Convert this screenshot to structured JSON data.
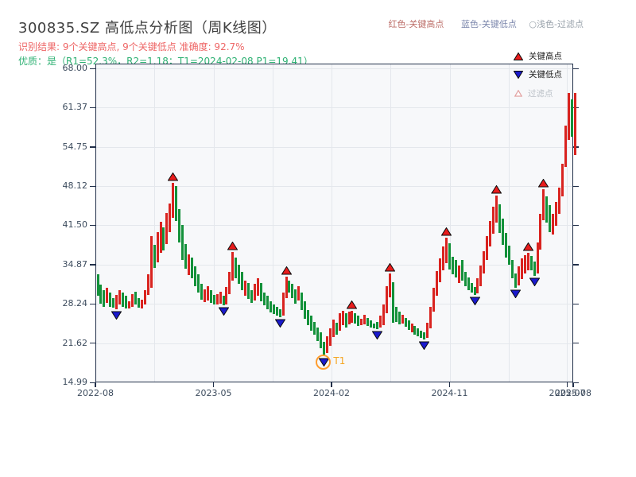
{
  "title": "300835.SZ 高低点分析图（周K线图）",
  "header_legend": {
    "red_label": "红色-关键高点",
    "blue_label": "蓝色-关键低点",
    "gray_label": "○浅色-过滤点"
  },
  "result_line": "识别结果: 9个关键高点, 9个关键低点  准确度: 92.7%",
  "quality_line": "优质：是（R1=52.3%，R2=1.18；T1=2024-02-08 P1=19.41）",
  "plot_legend": {
    "key_high": "关键高点",
    "key_low": "关键低点",
    "filtered": "过滤点"
  },
  "colors": {
    "candle_up": "#d9231f",
    "candle_down": "#13913a",
    "marker_high_fill": "#e81c1c",
    "marker_low_fill": "#1a1acd",
    "marker_edge": "#0a0a0a",
    "filtered_edge": "#e2a1a1",
    "accent_orange": "#ff9d2e",
    "text_red": "#ee6666",
    "text_green": "#2eb173"
  },
  "chart_data": {
    "type": "candlestick",
    "title": "300835.SZ 高低点分析图（周K线图）",
    "ylim": [
      14.99,
      68.0
    ],
    "grid": true,
    "legend_position": "upper-right",
    "y_ticks": [
      "68.00",
      "61.37",
      "54.75",
      "48.12",
      "41.50",
      "34.87",
      "28.24",
      "21.62",
      "14.99"
    ],
    "y_tick_values": [
      68.0,
      61.37,
      54.75,
      48.12,
      41.5,
      34.87,
      28.24,
      21.62,
      14.99
    ],
    "x_ticks": [
      {
        "label": "2022-08",
        "f": 0.0
      },
      {
        "label": "2023-05",
        "f": 0.2471
      },
      {
        "label": "2024-02",
        "f": 0.4942
      },
      {
        "label": "2024-11",
        "f": 0.7413
      },
      {
        "label": "2025-07",
        "f": 0.9875
      },
      {
        "label": "2025-08",
        "f": 1.0
      }
    ],
    "minor_grid_f": [
      0.1236,
      0.3707,
      0.6178,
      0.8649
    ],
    "candles": [
      [
        33.3,
        29.6,
        0
      ],
      [
        31.5,
        28.3,
        0
      ],
      [
        30.6,
        27.7,
        0
      ],
      [
        30.9,
        28.4,
        1
      ],
      [
        30.2,
        27.8,
        0
      ],
      [
        29.2,
        27.6,
        0
      ],
      [
        29.8,
        27.4,
        1
      ],
      [
        30.6,
        28.1,
        1
      ],
      [
        30.1,
        27.7,
        0
      ],
      [
        29.6,
        27.5,
        0
      ],
      [
        28.7,
        27.5,
        1
      ],
      [
        29.9,
        27.7,
        1
      ],
      [
        30.3,
        28.1,
        0
      ],
      [
        29.2,
        27.6,
        0
      ],
      [
        28.9,
        27.5,
        1
      ],
      [
        30.5,
        28.2,
        1
      ],
      [
        33.2,
        29.8,
        1
      ],
      [
        39.7,
        31.0,
        1
      ],
      [
        38.2,
        34.3,
        0
      ],
      [
        40.3,
        35.2,
        1
      ],
      [
        42.1,
        36.8,
        1
      ],
      [
        41.2,
        37.3,
        0
      ],
      [
        43.6,
        38.4,
        1
      ],
      [
        45.2,
        40.3,
        1
      ],
      [
        48.7,
        42.8,
        1
      ],
      [
        48.2,
        42.2,
        0
      ],
      [
        44.3,
        38.6,
        0
      ],
      [
        41.6,
        35.6,
        0
      ],
      [
        38.3,
        34.2,
        0
      ],
      [
        36.6,
        33.1,
        1
      ],
      [
        36.1,
        32.6,
        0
      ],
      [
        34.6,
        31.2,
        0
      ],
      [
        33.2,
        30.1,
        0
      ],
      [
        31.6,
        29.0,
        0
      ],
      [
        30.7,
        28.6,
        1
      ],
      [
        31.2,
        28.8,
        1
      ],
      [
        30.6,
        28.4,
        0
      ],
      [
        29.7,
        28.2,
        0
      ],
      [
        29.9,
        28.1,
        1
      ],
      [
        30.3,
        28.3,
        1
      ],
      [
        29.6,
        28.0,
        0
      ],
      [
        31.1,
        28.2,
        1
      ],
      [
        33.6,
        29.9,
        1
      ],
      [
        37.0,
        32.2,
        1
      ],
      [
        36.1,
        32.6,
        0
      ],
      [
        34.9,
        31.6,
        0
      ],
      [
        33.6,
        30.6,
        0
      ],
      [
        32.2,
        29.6,
        1
      ],
      [
        31.7,
        29.1,
        0
      ],
      [
        30.6,
        28.4,
        0
      ],
      [
        31.6,
        28.8,
        1
      ],
      [
        32.6,
        29.6,
        1
      ],
      [
        31.7,
        28.7,
        0
      ],
      [
        30.2,
        28.0,
        0
      ],
      [
        29.6,
        27.4,
        0
      ],
      [
        28.7,
        26.8,
        0
      ],
      [
        28.2,
        26.5,
        0
      ],
      [
        27.7,
        26.3,
        0
      ],
      [
        27.3,
        26.0,
        0
      ],
      [
        30.1,
        26.2,
        1
      ],
      [
        32.8,
        29.2,
        1
      ],
      [
        32.2,
        30.1,
        0
      ],
      [
        31.6,
        29.2,
        0
      ],
      [
        30.7,
        28.3,
        0
      ],
      [
        31.2,
        28.8,
        1
      ],
      [
        30.2,
        27.2,
        0
      ],
      [
        28.7,
        25.7,
        0
      ],
      [
        27.2,
        24.7,
        0
      ],
      [
        26.2,
        23.7,
        0
      ],
      [
        25.2,
        23.0,
        0
      ],
      [
        24.2,
        22.0,
        0
      ],
      [
        23.4,
        20.8,
        0
      ],
      [
        21.9,
        19.4,
        0
      ],
      [
        22.8,
        19.9,
        1
      ],
      [
        24.1,
        21.2,
        1
      ],
      [
        25.6,
        22.7,
        1
      ],
      [
        25.1,
        23.1,
        0
      ],
      [
        26.6,
        23.7,
        1
      ],
      [
        27.1,
        24.6,
        1
      ],
      [
        26.6,
        24.3,
        0
      ],
      [
        26.9,
        24.8,
        1
      ],
      [
        27.1,
        25.0,
        1
      ],
      [
        26.7,
        24.9,
        0
      ],
      [
        26.2,
        24.5,
        0
      ],
      [
        25.7,
        24.6,
        1
      ],
      [
        26.4,
        24.8,
        1
      ],
      [
        25.9,
        24.5,
        0
      ],
      [
        25.4,
        24.3,
        0
      ],
      [
        24.9,
        24.1,
        0
      ],
      [
        25.2,
        24.0,
        0
      ],
      [
        26.2,
        24.2,
        1
      ],
      [
        28.2,
        24.6,
        1
      ],
      [
        31.2,
        26.7,
        1
      ],
      [
        33.4,
        29.3,
        1
      ],
      [
        31.9,
        25.0,
        0
      ],
      [
        27.8,
        25.2,
        0
      ],
      [
        26.9,
        24.8,
        0
      ],
      [
        26.4,
        24.9,
        1
      ],
      [
        25.9,
        24.4,
        0
      ],
      [
        25.4,
        23.8,
        0
      ],
      [
        24.9,
        23.4,
        1
      ],
      [
        24.5,
        23.0,
        0
      ],
      [
        24.1,
        22.8,
        0
      ],
      [
        23.7,
        22.5,
        0
      ],
      [
        23.4,
        22.3,
        0
      ],
      [
        25.1,
        22.5,
        1
      ],
      [
        27.7,
        24.1,
        1
      ],
      [
        30.9,
        26.9,
        1
      ],
      [
        33.8,
        29.6,
        1
      ],
      [
        35.9,
        31.9,
        1
      ],
      [
        37.9,
        33.9,
        1
      ],
      [
        39.4,
        35.1,
        1
      ],
      [
        38.5,
        34.0,
        0
      ],
      [
        36.2,
        33.3,
        0
      ],
      [
        35.7,
        32.7,
        0
      ],
      [
        34.7,
        31.7,
        1
      ],
      [
        35.6,
        32.2,
        0
      ],
      [
        33.7,
        31.2,
        0
      ],
      [
        32.7,
        30.6,
        0
      ],
      [
        31.7,
        30.1,
        0
      ],
      [
        31.1,
        29.8,
        0
      ],
      [
        32.6,
        30.0,
        1
      ],
      [
        34.7,
        31.2,
        1
      ],
      [
        37.2,
        33.4,
        1
      ],
      [
        39.7,
        35.6,
        1
      ],
      [
        42.2,
        37.9,
        1
      ],
      [
        44.7,
        40.1,
        1
      ],
      [
        46.5,
        42.0,
        1
      ],
      [
        45.1,
        40.2,
        0
      ],
      [
        42.7,
        38.2,
        0
      ],
      [
        40.2,
        36.1,
        0
      ],
      [
        38.1,
        34.9,
        0
      ],
      [
        35.6,
        32.6,
        0
      ],
      [
        33.4,
        31.0,
        0
      ],
      [
        34.6,
        31.4,
        1
      ],
      [
        35.9,
        32.5,
        1
      ],
      [
        36.4,
        33.4,
        1
      ],
      [
        36.9,
        33.9,
        1
      ],
      [
        36.3,
        33.9,
        0
      ],
      [
        35.4,
        33.0,
        0
      ],
      [
        38.6,
        33.4,
        1
      ],
      [
        43.4,
        37.4,
        1
      ],
      [
        47.6,
        42.4,
        1
      ],
      [
        46.4,
        41.9,
        0
      ],
      [
        44.9,
        40.4,
        0
      ],
      [
        43.4,
        39.9,
        1
      ],
      [
        45.4,
        41.4,
        1
      ],
      [
        47.9,
        43.4,
        1
      ],
      [
        51.9,
        46.4,
        1
      ],
      [
        58.4,
        51.4,
        1
      ],
      [
        63.9,
        55.9,
        1
      ],
      [
        62.8,
        56.4,
        0
      ],
      [
        63.8,
        53.4,
        1
      ]
    ],
    "key_highs": [
      {
        "i": 24,
        "price": 48.7
      },
      {
        "i": 43,
        "price": 37.0
      },
      {
        "i": 60,
        "price": 32.8
      },
      {
        "i": 81,
        "price": 27.1
      },
      {
        "i": 93,
        "price": 33.4
      },
      {
        "i": 111,
        "price": 39.4
      },
      {
        "i": 127,
        "price": 46.5
      },
      {
        "i": 137,
        "price": 36.9
      },
      {
        "i": 142,
        "price": 47.6
      }
    ],
    "key_lows": [
      {
        "i": 6,
        "price": 27.4
      },
      {
        "i": 40,
        "price": 28.0
      },
      {
        "i": 58,
        "price": 26.0
      },
      {
        "i": 72,
        "price": 19.41
      },
      {
        "i": 89,
        "price": 24.0
      },
      {
        "i": 104,
        "price": 22.3
      },
      {
        "i": 120,
        "price": 29.8
      },
      {
        "i": 133,
        "price": 31.0
      },
      {
        "i": 139,
        "price": 33.0
      }
    ],
    "t1_annotation": {
      "i": 72,
      "label": "T1",
      "price": 19.41,
      "date": "2024-02-08"
    }
  }
}
